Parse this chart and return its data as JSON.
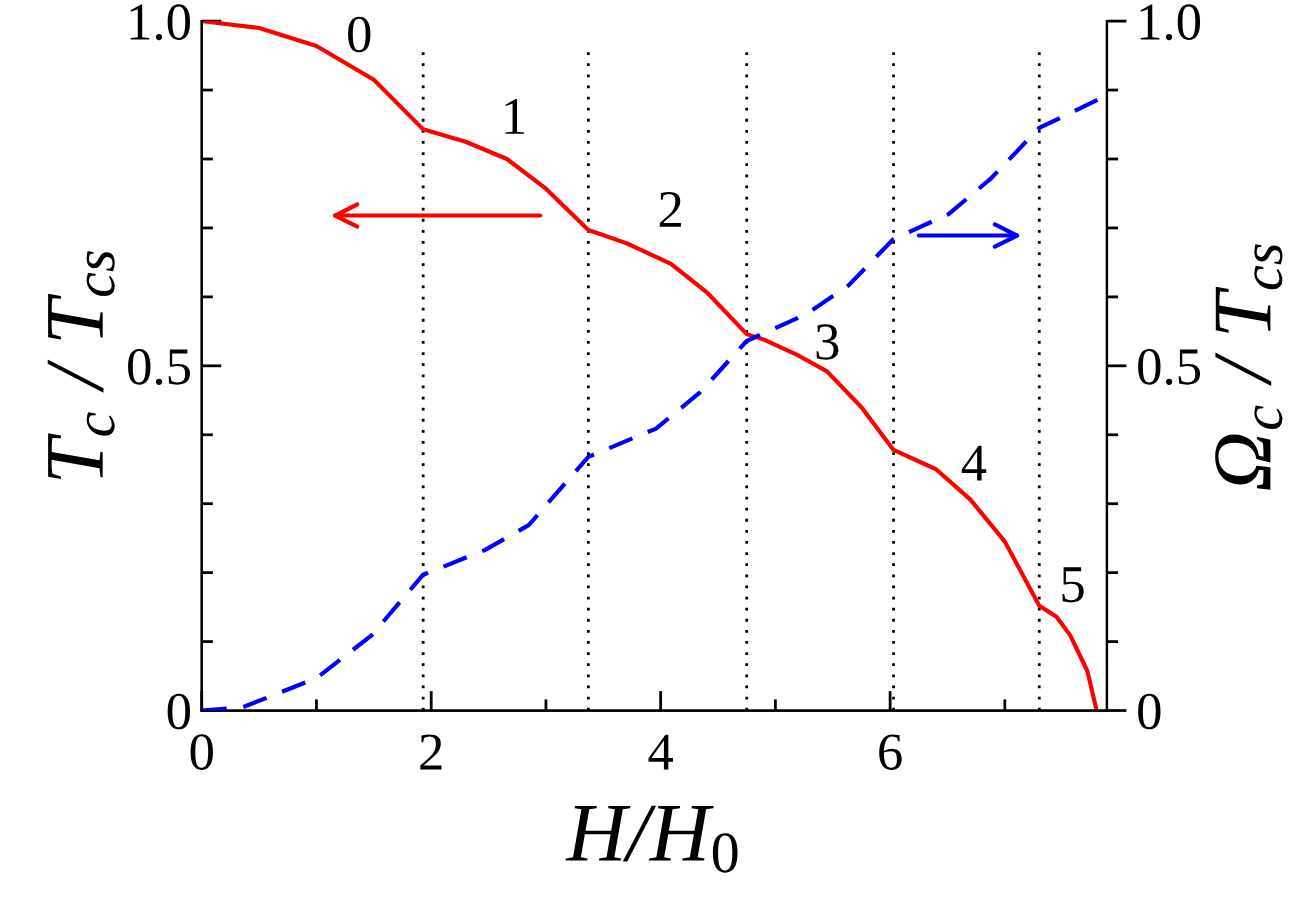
{
  "chart_data": {
    "type": "line",
    "xlabel": "H/H$_{0}$",
    "ylabel": "T$_{c}$ / T$_{cs}$",
    "y2label": "Ω$_{c}$ / T$_{cs}$",
    "series": [
      {
        "color": "#ff0000",
        "line_style": "solid",
        "x": [
          0,
          0.5,
          1.0,
          1.5,
          1.93,
          2.3,
          2.66,
          3.0,
          3.37,
          3.7,
          4.09,
          4.4,
          4.75,
          4.9,
          5.2,
          5.45,
          5.75,
          6.03,
          6.4,
          6.7,
          7.0,
          7.3,
          7.45,
          7.57,
          7.72,
          7.8
        ],
        "values": [
          1.0,
          0.99,
          0.964,
          0.915,
          0.843,
          0.825,
          0.8,
          0.757,
          0.697,
          0.678,
          0.648,
          0.607,
          0.546,
          0.538,
          0.515,
          0.492,
          0.44,
          0.378,
          0.35,
          0.306,
          0.245,
          0.152,
          0.136,
          0.109,
          0.057,
          0.0
        ]
      },
      {
        "color": "#0000ff",
        "line_style": "dashed",
        "axis": "y2",
        "x": [
          0,
          0.36,
          1.0,
          1.48,
          1.93,
          2.47,
          2.85,
          3.37,
          3.96,
          4.34,
          4.75,
          5.27,
          5.64,
          6.03,
          6.51,
          6.88,
          7.3,
          7.81
        ],
        "values": [
          0,
          0.005,
          0.047,
          0.109,
          0.197,
          0.233,
          0.269,
          0.368,
          0.409,
          0.461,
          0.536,
          0.575,
          0.617,
          0.684,
          0.72,
          0.772,
          0.845,
          0.886
        ]
      }
    ],
    "xlim": [
      0,
      7.89
    ],
    "xticks": [
      0,
      {
        "value": 1,
        "label": null
      },
      2,
      {
        "value": 3,
        "label": null
      },
      4,
      {
        "value": 5,
        "label": null
      },
      6,
      {
        "value": 7,
        "label": null
      }
    ],
    "ylim": [
      0,
      1.0
    ],
    "yticks": [
      0,
      {
        "value": 0.1,
        "label": null
      },
      {
        "value": 0.2,
        "label": null
      },
      {
        "value": 0.3,
        "label": null
      },
      {
        "value": 0.4,
        "label": null
      },
      0.5,
      {
        "value": 0.6,
        "label": null
      },
      {
        "value": 0.7,
        "label": null
      },
      {
        "value": 0.8,
        "label": null
      },
      {
        "value": 0.9,
        "label": null
      },
      {
        "value": 1.0,
        "label": "1.0"
      }
    ],
    "y2lim": [
      0,
      1.0
    ],
    "y2ticks": [
      0,
      {
        "value": 0.1,
        "label": null
      },
      {
        "value": 0.2,
        "label": null
      },
      {
        "value": 0.3,
        "label": null
      },
      {
        "value": 0.4,
        "label": null
      },
      0.5,
      {
        "value": 0.6,
        "label": null
      },
      {
        "value": 0.7,
        "label": null
      },
      {
        "value": 0.8,
        "label": null
      },
      {
        "value": 0.9,
        "label": null
      },
      {
        "value": 1.0,
        "label": "1.0"
      }
    ],
    "ref_lines": [
      {
        "axis": "x",
        "value": 1.93,
        "color": "#000000",
        "line_style": "dotted"
      },
      {
        "axis": "x",
        "value": 3.37,
        "color": "#000000",
        "line_style": "dotted"
      },
      {
        "axis": "x",
        "value": 4.75,
        "color": "#000000",
        "line_style": "dotted"
      },
      {
        "axis": "x",
        "value": 6.03,
        "color": "#000000",
        "line_style": "dotted"
      },
      {
        "axis": "x",
        "value": 7.3,
        "color": "#000000",
        "line_style": "dotted"
      }
    ],
    "annotations": [
      "0",
      "1",
      "2",
      "3",
      "4",
      "5"
    ],
    "grid": false,
    "marker": "none"
  }
}
